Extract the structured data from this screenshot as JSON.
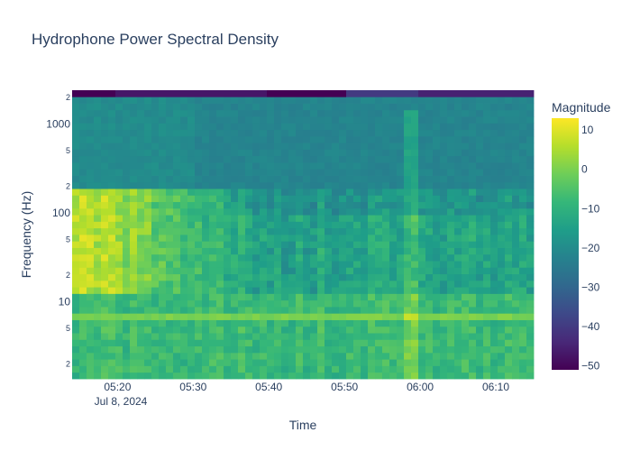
{
  "chart_data": {
    "type": "heatmap",
    "title": "Hydrophone Power Spectral Density",
    "xlabel": "Time",
    "ylabel": "Frequency (Hz)",
    "y_scale": "log",
    "date_label": "Jul 8, 2024",
    "x_range": [
      "05:14",
      "06:15"
    ],
    "x_ticks": [
      "05:20",
      "05:30",
      "05:40",
      "05:50",
      "06:00",
      "06:10"
    ],
    "y_range_hz": [
      1.35,
      2400
    ],
    "y_major_ticks": [
      {
        "value": 10,
        "label": "10"
      },
      {
        "value": 100,
        "label": "100"
      },
      {
        "value": 1000,
        "label": "1000"
      }
    ],
    "y_minor_ticks": [
      {
        "value": 2,
        "label": "2"
      },
      {
        "value": 5,
        "label": "5"
      },
      {
        "value": 20,
        "label": "2"
      },
      {
        "value": 50,
        "label": "5"
      },
      {
        "value": 200,
        "label": "2"
      },
      {
        "value": 500,
        "label": "5"
      },
      {
        "value": 2000,
        "label": "2"
      }
    ],
    "colorscale": "Viridis",
    "colorbar": {
      "title": "Magnitude",
      "range": [
        -51,
        13
      ],
      "ticks": [
        10,
        0,
        -10,
        -20,
        -30,
        -40,
        -50
      ],
      "tick_labels": [
        "10",
        "0",
        "−10",
        "−20",
        "−30",
        "−40",
        "−50"
      ]
    },
    "colors": {
      "viridis_0": "#440154",
      "viridis_1": "#482878",
      "viridis_2": "#3e4989",
      "viridis_3": "#31688e",
      "viridis_4": "#26828e",
      "viridis_5": "#1f9e89",
      "viridis_6": "#35b779",
      "viridis_7": "#6ece58",
      "viridis_8": "#b5de2b",
      "viridis_9": "#fde725"
    },
    "time_segments": [
      {
        "start": "05:14",
        "end": "05:20",
        "top_band": -51
      },
      {
        "start": "05:20",
        "end": "05:40",
        "top_band": -47
      },
      {
        "start": "05:40",
        "end": "05:50",
        "top_band": -51
      },
      {
        "start": "05:50",
        "end": "06:00",
        "top_band": -40
      },
      {
        "start": "06:00",
        "end": "06:15",
        "top_band": -45
      }
    ]
  }
}
